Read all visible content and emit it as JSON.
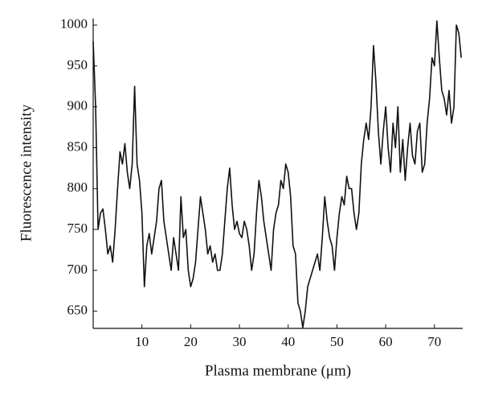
{
  "chart_data": {
    "type": "line",
    "x_label": "Plasma membrane (μm)",
    "y_label": "Fluorescence intensity",
    "xlim": [
      0,
      75.8
    ],
    "ylim": [
      629,
      1008
    ],
    "xticks": [
      10,
      20,
      30,
      40,
      50,
      60,
      70
    ],
    "yticks": [
      650,
      700,
      750,
      800,
      850,
      900,
      950,
      1000
    ],
    "grid": false,
    "series": [
      {
        "color": "#111111",
        "x": [
          0,
          0.5,
          1,
          1.5,
          2,
          2.5,
          3,
          3.5,
          4,
          4.5,
          5,
          5.5,
          6,
          6.5,
          7,
          7.5,
          8,
          8.5,
          9,
          9.5,
          10,
          10.5,
          11,
          11.5,
          12,
          12.5,
          13,
          13.5,
          14,
          14.5,
          15,
          15.5,
          16,
          16.5,
          17,
          17.5,
          18,
          18.5,
          19,
          19.5,
          20,
          20.5,
          21,
          21.5,
          22,
          22.5,
          23,
          23.5,
          24,
          24.5,
          25,
          25.5,
          26,
          26.5,
          27,
          27.5,
          28,
          28.5,
          29,
          29.5,
          30,
          30.5,
          31,
          31.5,
          32,
          32.5,
          33,
          33.5,
          34,
          34.5,
          35,
          35.5,
          36,
          36.5,
          37,
          37.5,
          38,
          38.5,
          39,
          39.5,
          40,
          40.5,
          41,
          41.5,
          42,
          42.5,
          43,
          43.5,
          44,
          44.5,
          45,
          45.5,
          46,
          46.5,
          47,
          47.5,
          48,
          48.5,
          49,
          49.5,
          50,
          50.5,
          51,
          51.5,
          52,
          52.5,
          53,
          53.5,
          54,
          54.5,
          55,
          55.5,
          56,
          56.5,
          57,
          57.5,
          58,
          58.5,
          59,
          59.5,
          60,
          60.5,
          61,
          61.5,
          62,
          62.5,
          63,
          63.5,
          64,
          64.5,
          65,
          65.5,
          66,
          66.5,
          67,
          67.5,
          68,
          68.5,
          69,
          69.5,
          70,
          70.5,
          71,
          71.5,
          72,
          72.5,
          73,
          73.5,
          74,
          74.5,
          75,
          75.5
        ],
        "values": [
          980,
          900,
          750,
          770,
          775,
          750,
          720,
          730,
          710,
          750,
          800,
          845,
          830,
          855,
          820,
          800,
          830,
          925,
          830,
          810,
          770,
          680,
          730,
          745,
          720,
          740,
          760,
          800,
          810,
          760,
          740,
          720,
          700,
          740,
          720,
          700,
          790,
          740,
          750,
          700,
          680,
          690,
          710,
          750,
          790,
          770,
          750,
          720,
          730,
          710,
          720,
          700,
          700,
          720,
          760,
          800,
          825,
          780,
          750,
          760,
          745,
          740,
          760,
          750,
          730,
          700,
          720,
          770,
          810,
          790,
          760,
          740,
          720,
          700,
          750,
          770,
          780,
          810,
          800,
          830,
          820,
          790,
          730,
          720,
          660,
          650,
          630,
          650,
          680,
          690,
          700,
          710,
          720,
          700,
          740,
          790,
          760,
          740,
          730,
          700,
          740,
          770,
          790,
          780,
          815,
          800,
          800,
          770,
          750,
          770,
          830,
          860,
          880,
          860,
          900,
          975,
          930,
          870,
          830,
          870,
          900,
          850,
          820,
          880,
          850,
          900,
          820,
          860,
          810,
          850,
          880,
          840,
          830,
          870,
          880,
          820,
          830,
          880,
          910,
          960,
          950,
          1005,
          960,
          920,
          910,
          890,
          920,
          880,
          900,
          1000,
          990,
          960
        ]
      }
    ]
  }
}
